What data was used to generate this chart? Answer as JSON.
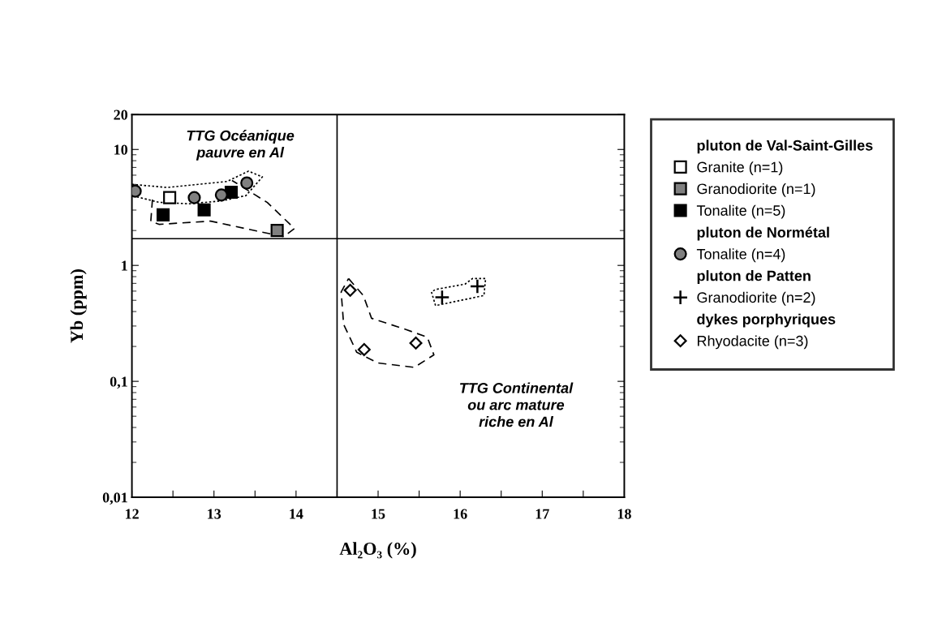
{
  "chart_data": {
    "type": "scatter",
    "xlabel": "Al₂O₃ (%)",
    "ylabel": "Yb (ppm)",
    "xlim": [
      12,
      18
    ],
    "ylim": [
      0.01,
      20
    ],
    "log": "y",
    "xticks": [
      12,
      {
        "value": 12.5,
        "label": null
      },
      13,
      {
        "value": 13.5,
        "label": null
      },
      14,
      {
        "value": 14.5,
        "label": null
      },
      15,
      {
        "value": 15.5,
        "label": null
      },
      16,
      {
        "value": 16.5,
        "label": null
      },
      17,
      {
        "value": 17.5,
        "label": null
      },
      18
    ],
    "yticks": [
      {
        "value": 0.01,
        "label": "0,01"
      },
      {
        "value": 0.1,
        "label": "0,1"
      },
      1,
      10,
      20
    ],
    "grid": false,
    "legend": "right",
    "ref_lines": [
      {
        "axis": "x",
        "value": 14.5,
        "color": "#000000"
      },
      {
        "axis": "y",
        "value": 1.7,
        "color": "#000000"
      }
    ],
    "annotations": [
      "TTG Océanique\npauvre en Al",
      "TTG Continental\nou arc mature\nriche en Al"
    ],
    "series": [
      {
        "name": "pluton de Val-Saint-Gilles",
        "marker": "none"
      },
      {
        "name": "Granite (n=1)",
        "color": "#ffffff",
        "marker": "square",
        "x": [
          12.46
        ],
        "values": [
          3.84
        ]
      },
      {
        "name": "Granodiorite (n=1)",
        "color": "#808080",
        "marker": "square",
        "x": [
          13.77
        ],
        "values": [
          2.0
        ]
      },
      {
        "name": "Tonalite (n=5)",
        "color": "#000000",
        "marker": "square",
        "x": [
          12.38,
          12.88,
          13.21
        ],
        "values": [
          2.73,
          3.01,
          4.28
        ]
      },
      {
        "name": "pluton de Normétal",
        "marker": "none"
      },
      {
        "name": "Tonalite (n=4)",
        "color": "#808080",
        "marker": "circle",
        "x": [
          12.04,
          12.76,
          13.09,
          13.4
        ],
        "values": [
          4.37,
          3.84,
          4.05,
          5.14
        ]
      },
      {
        "name": "pluton de Patten",
        "marker": "none"
      },
      {
        "name": "Granodiorite (n=2)",
        "color": "#000000",
        "marker": "cross",
        "x": [
          15.78,
          16.21
        ],
        "values": [
          0.53,
          0.66
        ]
      },
      {
        "name": "dykes porphyriques",
        "marker": "none"
      },
      {
        "name": "Rhyodacite (n=3)",
        "color": "#ffffff",
        "marker": "diamond",
        "x": [
          14.66,
          14.83,
          15.46
        ],
        "values": [
          0.61,
          0.188,
          0.214
        ]
      }
    ]
  }
}
